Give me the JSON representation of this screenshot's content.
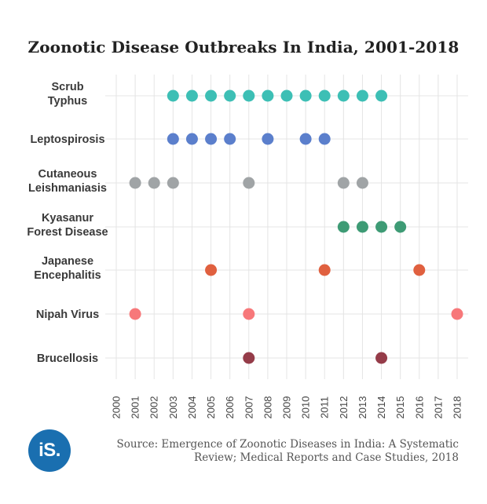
{
  "title": "Zoonotic Disease Outbreaks In India, 2001-2018",
  "source": "Source: Emergence of Zoonotic Diseases in India: A Systematic Review; Medical Reports and Case Studies, 2018",
  "logo_text": "iS.",
  "chart_data": {
    "type": "scatter",
    "x": [
      2000,
      2001,
      2002,
      2003,
      2004,
      2005,
      2006,
      2007,
      2008,
      2009,
      2010,
      2011,
      2012,
      2013,
      2014,
      2015,
      2016,
      2017,
      2018
    ],
    "xlim": [
      2000,
      2018
    ],
    "grid": true,
    "series": [
      {
        "name": "Scrub\nTyphus",
        "color": "#3dbfb5",
        "values": [
          2003,
          2004,
          2005,
          2006,
          2007,
          2008,
          2009,
          2010,
          2011,
          2012,
          2013,
          2014
        ]
      },
      {
        "name": "Leptospirosis",
        "color": "#5b7fcc",
        "values": [
          2003,
          2004,
          2005,
          2006,
          2008,
          2010,
          2011
        ]
      },
      {
        "name": "Cutaneous\nLeishmaniasis",
        "color": "#a0a4a6",
        "values": [
          2001,
          2002,
          2003,
          2007,
          2012,
          2013
        ]
      },
      {
        "name": "Kyasanur\nForest Disease",
        "color": "#3e9b75",
        "values": [
          2012,
          2013,
          2014,
          2015
        ]
      },
      {
        "name": "Japanese\nEncephalitis",
        "color": "#e0603f",
        "values": [
          2005,
          2011,
          2016
        ]
      },
      {
        "name": "Nipah Virus",
        "color": "#f7787a",
        "values": [
          2001,
          2007,
          2018
        ]
      },
      {
        "name": "Brucellosis",
        "color": "#953c49",
        "values": [
          2007,
          2014
        ]
      }
    ]
  }
}
